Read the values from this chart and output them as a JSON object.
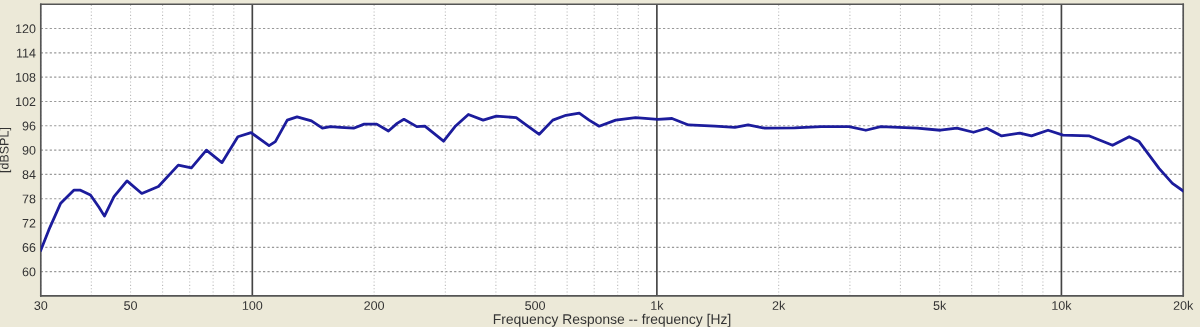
{
  "chart_data": {
    "type": "line",
    "xlabel": "Frequency Response -- frequency [Hz]",
    "ylabel": "[dBSPL]",
    "log": "x",
    "grid": true,
    "marker": "none",
    "line_style": "solid",
    "xlim": [
      30,
      20000
    ],
    "ylim": [
      54,
      126
    ],
    "xticks": [
      30,
      {
        "value": 40,
        "label": null
      },
      50,
      {
        "value": 60,
        "label": null
      },
      {
        "value": 70,
        "label": null
      },
      {
        "value": 80,
        "label": null
      },
      {
        "value": 90,
        "label": null
      },
      100,
      200,
      {
        "value": 300,
        "label": null
      },
      {
        "value": 400,
        "label": null
      },
      500,
      {
        "value": 600,
        "label": null
      },
      {
        "value": 700,
        "label": null
      },
      {
        "value": 800,
        "label": null
      },
      {
        "value": 900,
        "label": null
      },
      {
        "value": 1000,
        "label": "1k"
      },
      {
        "value": 2000,
        "label": "2k"
      },
      {
        "value": 3000,
        "label": null
      },
      {
        "value": 4000,
        "label": null
      },
      {
        "value": 5000,
        "label": "5k"
      },
      {
        "value": 6000,
        "label": null
      },
      {
        "value": 7000,
        "label": null
      },
      {
        "value": 8000,
        "label": null
      },
      {
        "value": 9000,
        "label": null
      },
      {
        "value": 10000,
        "label": "10k"
      },
      {
        "value": 20000,
        "label": "20k"
      }
    ],
    "yticks": [
      60,
      66,
      72,
      78,
      84,
      90,
      96,
      102,
      108,
      114,
      120
    ],
    "series": [
      {
        "color": "#1c1c9c",
        "x": [
          30,
          31.4,
          33.6,
          36.2,
          37.6,
          39.8,
          41.7,
          43.1,
          45.5,
          49,
          53.3,
          58.6,
          65.6,
          70.7,
          77,
          84.1,
          92.1,
          99.3,
          110,
          114,
          122,
          129,
          140,
          149,
          156,
          165,
          178,
          189,
          203,
          217,
          228,
          237,
          255,
          267,
          297,
          317,
          342,
          372,
          401,
          449,
          475,
          512,
          553,
          596,
          643,
          680,
          720,
          791,
          886,
          1005,
          1090,
          1197,
          1392,
          1559,
          1681,
          1848,
          2189,
          2547,
          2988,
          3285,
          3576,
          4398,
          5021,
          5516,
          6062,
          6537,
          7116,
          7893,
          8434,
          9266,
          10090,
          11730,
          13380,
          14710,
          15560,
          17430,
          18810,
          20000
        ],
        "values": [
          65.3,
          70.3,
          76.9,
          80.1,
          80.1,
          78.9,
          76.0,
          73.7,
          78.5,
          82.4,
          79.3,
          81.0,
          86.3,
          85.6,
          90.0,
          86.9,
          93.3,
          94.3,
          91.1,
          92.1,
          97.4,
          98.2,
          97.2,
          95.4,
          95.8,
          95.6,
          95.4,
          96.4,
          96.4,
          94.7,
          96.6,
          97.6,
          95.8,
          95.9,
          92.2,
          95.8,
          98.8,
          97.4,
          98.4,
          98.0,
          96.2,
          93.9,
          97.4,
          98.6,
          99.1,
          97.4,
          95.9,
          97.4,
          98.0,
          97.6,
          97.8,
          96.2,
          95.9,
          95.6,
          96.2,
          95.4,
          95.5,
          95.8,
          95.8,
          94.9,
          95.8,
          95.4,
          94.9,
          95.4,
          94.4,
          95.4,
          93.5,
          94.2,
          93.5,
          94.9,
          93.7,
          93.5,
          91.2,
          93.3,
          92.1,
          85.5,
          81.8,
          79.9
        ]
      }
    ]
  }
}
